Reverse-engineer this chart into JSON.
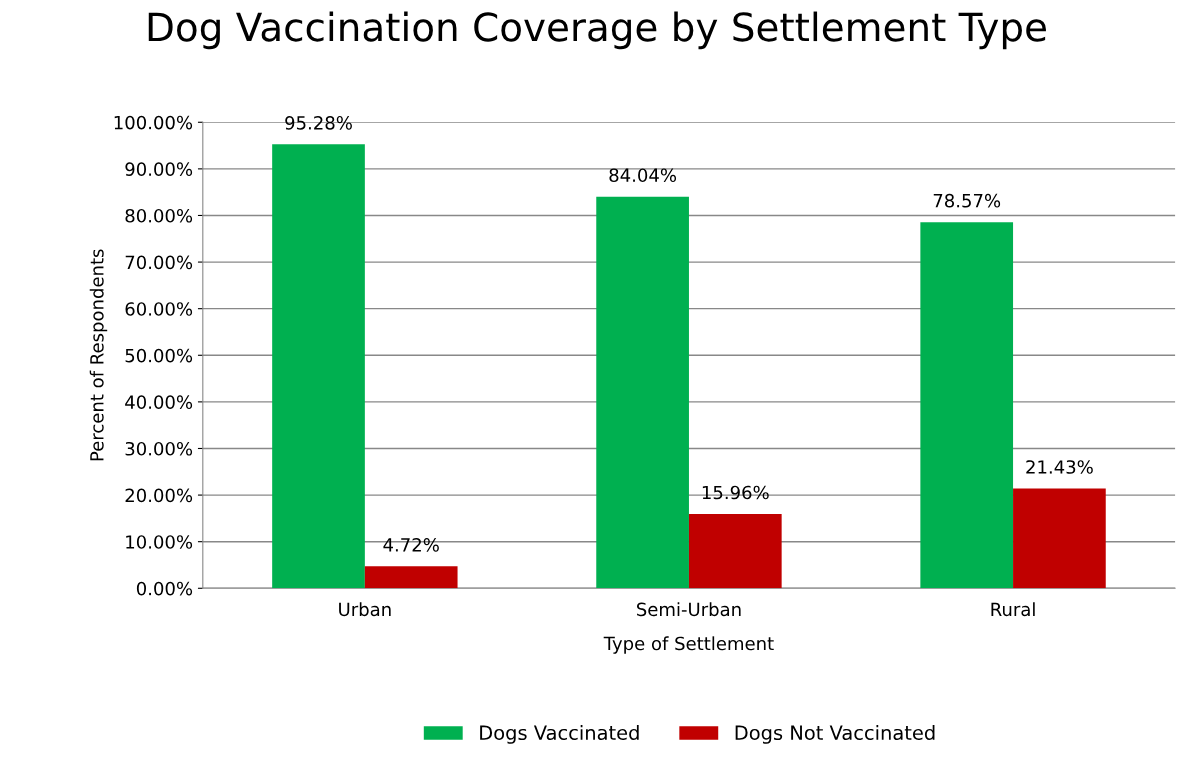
{
  "chart_data": {
    "type": "bar",
    "title": "Dog Vaccination Coverage by Settlement Type",
    "xlabel": "Type of Settlement",
    "ylabel": "Percent of Respondents",
    "categories": [
      "Urban",
      "Semi-Urban",
      "Rural"
    ],
    "series": [
      {
        "name": "Dogs Vaccinated",
        "color": "#00b050",
        "values": [
          95.28,
          84.04,
          78.57
        ],
        "value_labels": [
          "95.28%",
          "84.04%",
          "78.57%"
        ]
      },
      {
        "name": "Dogs Not Vaccinated",
        "color": "#c00000",
        "values": [
          4.72,
          15.96,
          21.43
        ],
        "value_labels": [
          "4.72%",
          "15.96%",
          "21.43%"
        ]
      }
    ],
    "ylim": [
      0,
      100
    ],
    "yticks": [
      {
        "value": 0,
        "label": "0.00%"
      },
      {
        "value": 10,
        "label": "10.00%"
      },
      {
        "value": 20,
        "label": "20.00%"
      },
      {
        "value": 30,
        "label": "30.00%"
      },
      {
        "value": 40,
        "label": "40.00%"
      },
      {
        "value": 50,
        "label": "50.00%"
      },
      {
        "value": 60,
        "label": "60.00%"
      },
      {
        "value": 70,
        "label": "70.00%"
      },
      {
        "value": 80,
        "label": "80.00%"
      },
      {
        "value": 90,
        "label": "90.00%"
      },
      {
        "value": 100,
        "label": "100.00%"
      }
    ],
    "grid": "y",
    "legend": "bottom"
  }
}
